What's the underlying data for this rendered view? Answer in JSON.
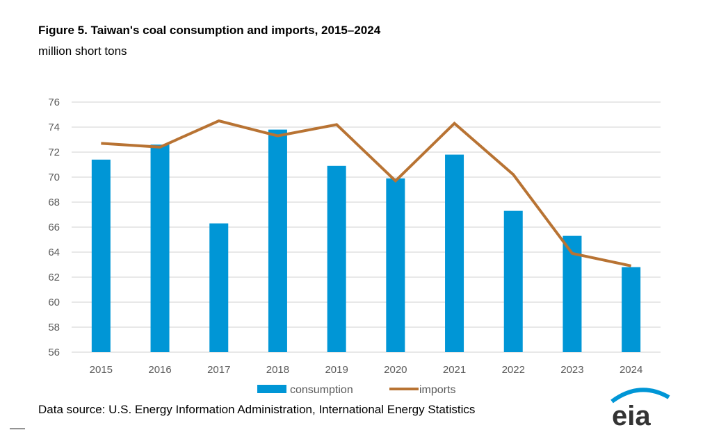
{
  "chart_data": {
    "type": "bar",
    "title": "Figure 5. Taiwan's coal consumption and imports, 2015–2024",
    "subtitle": "million short tons",
    "categories": [
      "2015",
      "2016",
      "2017",
      "2018",
      "2019",
      "2020",
      "2021",
      "2022",
      "2023",
      "2024"
    ],
    "series": [
      {
        "name": "consumption",
        "type": "bar",
        "color": "#0096D6",
        "values": [
          71.4,
          72.6,
          66.3,
          73.8,
          70.9,
          69.9,
          71.8,
          67.3,
          65.3,
          62.8
        ]
      },
      {
        "name": "imports",
        "type": "line",
        "color": "#B87333",
        "values": [
          72.7,
          72.4,
          74.5,
          73.3,
          74.2,
          69.7,
          74.3,
          70.2,
          63.9,
          62.9
        ]
      }
    ],
    "ylim": [
      56,
      76
    ],
    "yticks": [
      56,
      58,
      60,
      62,
      64,
      66,
      68,
      70,
      72,
      74,
      76
    ],
    "grid": true,
    "legend": "bottom"
  },
  "source": "Data source: U.S. Energy Information Administration, International Energy Statistics",
  "logo": "eia"
}
